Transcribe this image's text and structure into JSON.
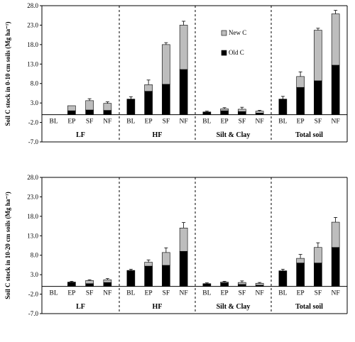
{
  "chart_data": {
    "type": "bar",
    "stacked": true,
    "series_legend": [
      {
        "name": "New C",
        "color": "#bdbdbd"
      },
      {
        "name": "Old C",
        "color": "#000000"
      }
    ],
    "fractions": [
      "LF",
      "HF",
      "Silt & Clay",
      "Total soil"
    ],
    "categories": [
      "BL",
      "EP",
      "SF",
      "NF"
    ],
    "yticks": [
      "-7.0",
      "-2.0",
      "3.0",
      "8.0",
      "13.0",
      "18.0",
      "23.0",
      "28.0"
    ],
    "ylim": [
      -7,
      28
    ],
    "panels": [
      {
        "ylabel": "Soil C stock in 0-10 cm soils (Mg ha⁻¹)",
        "groups": [
          {
            "fraction": "LF",
            "old": [
              0,
              1.0,
              1.2,
              1.1
            ],
            "new": [
              0,
              1.3,
              2.4,
              1.8
            ],
            "err": [
              0,
              0.0,
              0.5,
              0.4
            ]
          },
          {
            "fraction": "HF",
            "old": [
              4.0,
              6.0,
              7.8,
              11.6
            ],
            "new": [
              0,
              1.7,
              10.2,
              11.4
            ],
            "err": [
              0.6,
              1.2,
              0.5,
              1.0
            ]
          },
          {
            "fraction": "Silt & Clay",
            "old": [
              0.7,
              1.0,
              0.8,
              0.4
            ],
            "new": [
              0,
              0.5,
              0.6,
              0.5
            ],
            "err": [
              0.2,
              0.3,
              0.5,
              0.2
            ]
          },
          {
            "fraction": "Total soil",
            "old": [
              4.0,
              7.0,
              8.7,
              12.7
            ],
            "new": [
              0,
              2.8,
              13.0,
              13.2
            ],
            "err": [
              0.7,
              1.2,
              0.5,
              0.9
            ]
          }
        ]
      },
      {
        "ylabel": "Soil C stock in 10-20 cm soils (Mg ha⁻¹)",
        "groups": [
          {
            "fraction": "LF",
            "old": [
              0,
              1.0,
              0.7,
              1.0
            ],
            "new": [
              0,
              0.1,
              0.8,
              0.7
            ],
            "err": [
              0,
              0.2,
              0.2,
              0.3
            ]
          },
          {
            "fraction": "HF",
            "old": [
              4.1,
              5.2,
              5.4,
              9.0
            ],
            "new": [
              0,
              1.0,
              3.3,
              6.0
            ],
            "err": [
              0.3,
              0.6,
              1.2,
              1.4
            ]
          },
          {
            "fraction": "Silt & Clay",
            "old": [
              0.7,
              0.9,
              0.5,
              0.3
            ],
            "new": [
              0,
              0.2,
              0.5,
              0.5
            ],
            "err": [
              0.2,
              0.2,
              0.4,
              0.2
            ]
          },
          {
            "fraction": "Total soil",
            "old": [
              4.0,
              6.0,
              6.0,
              10.0
            ],
            "new": [
              0,
              1.2,
              4.0,
              6.5
            ],
            "err": [
              0.4,
              1.0,
              1.2,
              1.2
            ]
          }
        ]
      }
    ]
  }
}
